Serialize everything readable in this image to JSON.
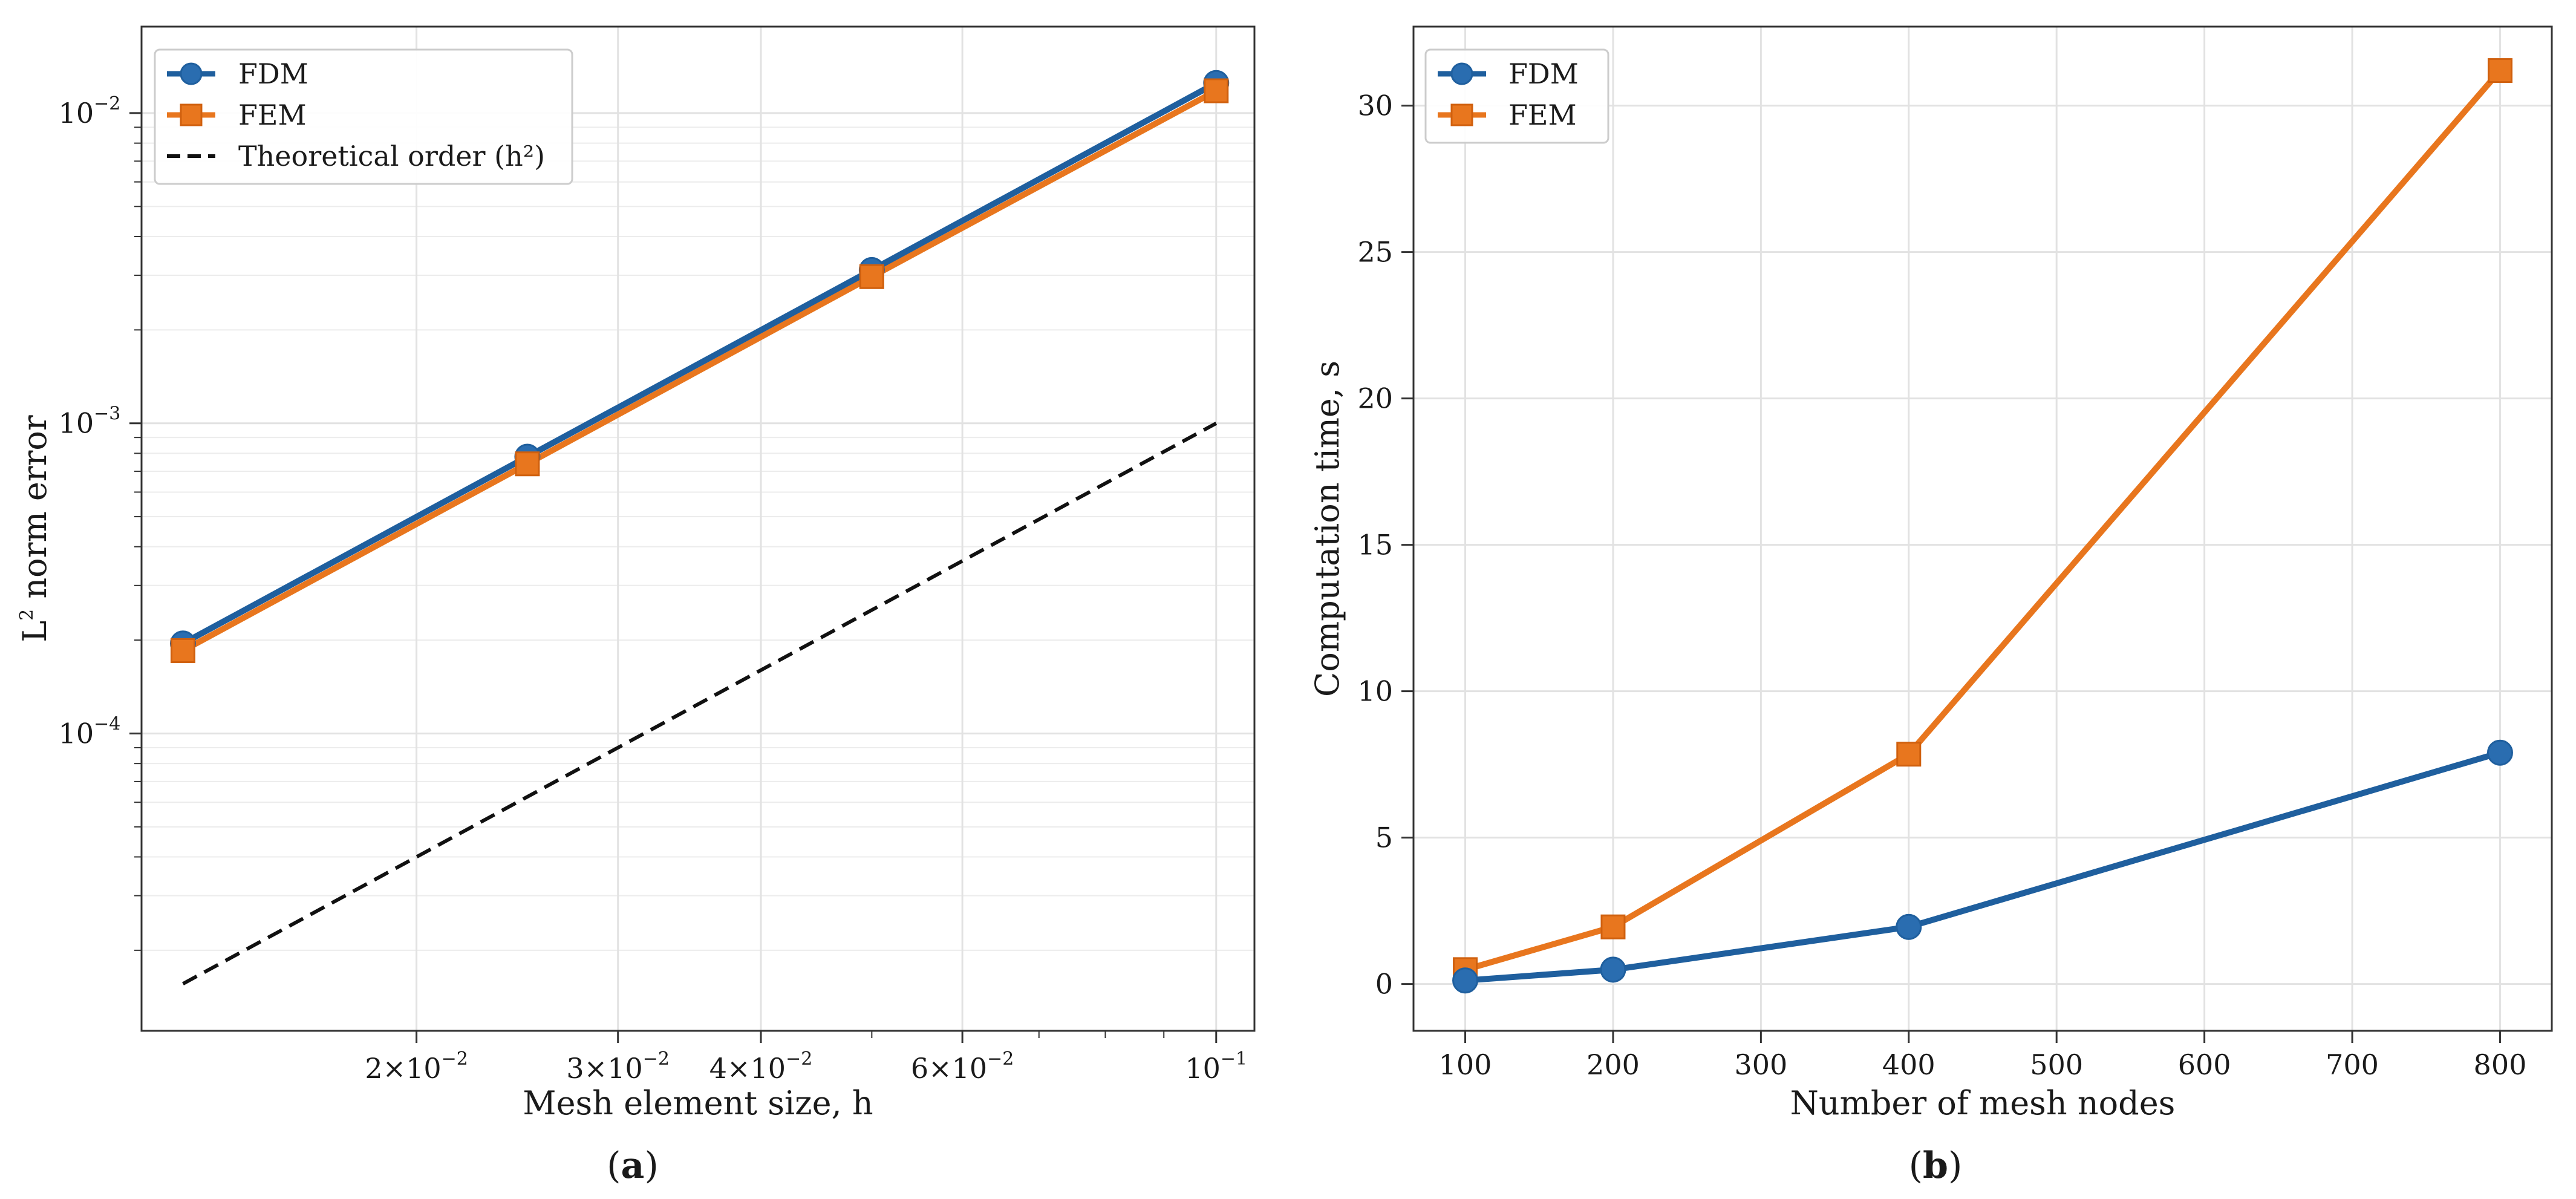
{
  "colors": {
    "fdm": "#1f5f9e",
    "fdm_marker": "#2a6db0",
    "fem": "#e8761e",
    "theory": "#111111",
    "grid": "#e2e2e2",
    "axis": "#333333"
  },
  "chart_data": [
    {
      "panel": "a",
      "panel_label": "a",
      "type": "line",
      "xscale": "log",
      "yscale": "log",
      "xlabel": "Mesh element size, h",
      "ylabel_main": "L",
      "ylabel_sup": "2",
      "ylabel_rest": " norm error",
      "xlim": [
        0.0115,
        0.108
      ],
      "ylim": [
        1.1e-05,
        0.019
      ],
      "grid": true,
      "x_ticks": [
        {
          "value": 0.02,
          "mantissa": "2",
          "exp": "−2"
        },
        {
          "value": 0.03,
          "mantissa": "3",
          "exp": "−2"
        },
        {
          "value": 0.04,
          "mantissa": "4",
          "exp": "−2"
        },
        {
          "value": 0.06,
          "mantissa": "6",
          "exp": "−2"
        },
        {
          "value": 0.1,
          "mantissa": "",
          "exp": "−1"
        }
      ],
      "y_ticks": [
        {
          "value": 0.0001,
          "exp": "−4"
        },
        {
          "value": 0.001,
          "exp": "−3"
        },
        {
          "value": 0.01,
          "exp": "−2"
        }
      ],
      "legend_position": "upper-left",
      "legend": [
        "FDM",
        "FEM",
        "Theoretical order (h²)"
      ],
      "series": [
        {
          "name": "FDM",
          "marker": "circle",
          "x": [
            0.0125,
            0.025,
            0.05,
            0.1
          ],
          "y": [
            0.000195,
            0.00078,
            0.00312,
            0.0125
          ]
        },
        {
          "name": "FEM",
          "marker": "square",
          "x": [
            0.0125,
            0.025,
            0.05,
            0.1
          ],
          "y": [
            0.000185,
            0.00074,
            0.00297,
            0.0118
          ]
        },
        {
          "name": "Theoretical order (h²)",
          "marker": "none",
          "dashed": true,
          "x": [
            0.0125,
            0.025,
            0.05,
            0.1
          ],
          "y": [
            1.56e-05,
            6.25e-05,
            0.00025,
            0.001
          ]
        }
      ]
    },
    {
      "panel": "b",
      "panel_label": "b",
      "type": "line",
      "xlabel": "Number of mesh nodes",
      "ylabel": "Computation time, s",
      "xlim": [
        65,
        835
      ],
      "ylim": [
        -1.6,
        32.7
      ],
      "grid": true,
      "x_ticks": [
        100,
        200,
        300,
        400,
        500,
        600,
        700,
        800
      ],
      "y_ticks": [
        0,
        5,
        10,
        15,
        20,
        25,
        30
      ],
      "legend_position": "upper-left",
      "legend": [
        "FDM",
        "FEM"
      ],
      "series": [
        {
          "name": "FDM",
          "marker": "circle",
          "x": [
            100,
            200,
            400,
            800
          ],
          "y": [
            0.12,
            0.49,
            1.95,
            7.9
          ]
        },
        {
          "name": "FEM",
          "marker": "square",
          "x": [
            100,
            200,
            400,
            800
          ],
          "y": [
            0.49,
            1.95,
            7.85,
            31.2
          ]
        }
      ]
    }
  ]
}
